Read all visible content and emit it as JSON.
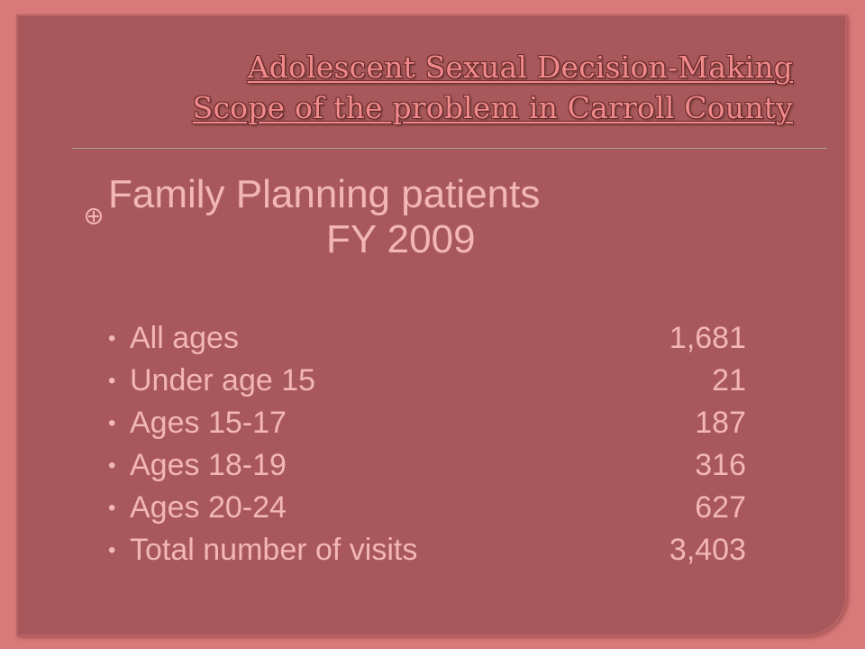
{
  "slide": {
    "title_line1": "Adolescent Sexual Decision-Making",
    "title_line2": "Scope of the problem in Carroll County",
    "heading_line1": "Family Planning patients",
    "heading_line2": "FY 2009",
    "stats": [
      {
        "label": "All ages",
        "value": "1,681"
      },
      {
        "label": "Under age 15",
        "value": "21"
      },
      {
        "label": "Ages 15-17",
        "value": "187"
      },
      {
        "label": "Ages 18-19",
        "value": "316"
      },
      {
        "label": "Ages 20-24",
        "value": "627"
      },
      {
        "label": "Total number of visits",
        "value": "3,403"
      }
    ]
  },
  "colors": {
    "background": "#d97a7a",
    "panel": "#a8585a",
    "title": "#f08a8a",
    "text": "#f2b6b4"
  },
  "icons": {
    "heading_bullet": "circled-plus-icon",
    "list_bullet": "dot-icon"
  }
}
